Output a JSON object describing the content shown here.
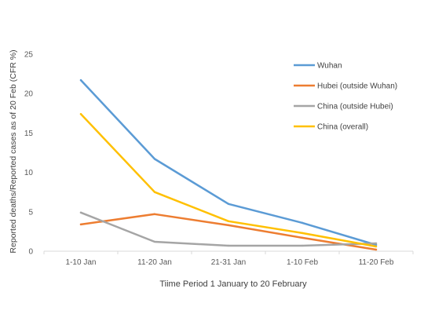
{
  "chart_data": {
    "type": "line",
    "title": "",
    "xlabel": "Tiime Period 1 January to 20 February",
    "ylabel": "Reported deaths/Reported cases as of 20 Feb (CFR %)",
    "categories": [
      "1-10 Jan",
      "11-20 Jan",
      "21-31 Jan",
      "1-10 Feb",
      "11-20 Feb"
    ],
    "ylim": [
      0,
      25
    ],
    "yticks": [
      "0",
      "5",
      "10",
      "15",
      "20",
      "25"
    ],
    "grid": false,
    "legend_position": "top-right",
    "series": [
      {
        "name": "Wuhan",
        "color": "#5B9BD5",
        "values": [
          21.7,
          11.7,
          6.0,
          3.6,
          0.8
        ]
      },
      {
        "name": "Hubei (outside Wuhan)",
        "color": "#ED7D31",
        "values": [
          3.4,
          4.7,
          3.3,
          1.7,
          0.2
        ]
      },
      {
        "name": "China (outside Hubei)",
        "color": "#A5A5A5",
        "values": [
          4.9,
          1.2,
          0.7,
          0.7,
          1.0
        ]
      },
      {
        "name": "China (overall)",
        "color": "#FFC000",
        "values": [
          17.4,
          7.5,
          3.8,
          2.3,
          0.6
        ]
      }
    ]
  }
}
